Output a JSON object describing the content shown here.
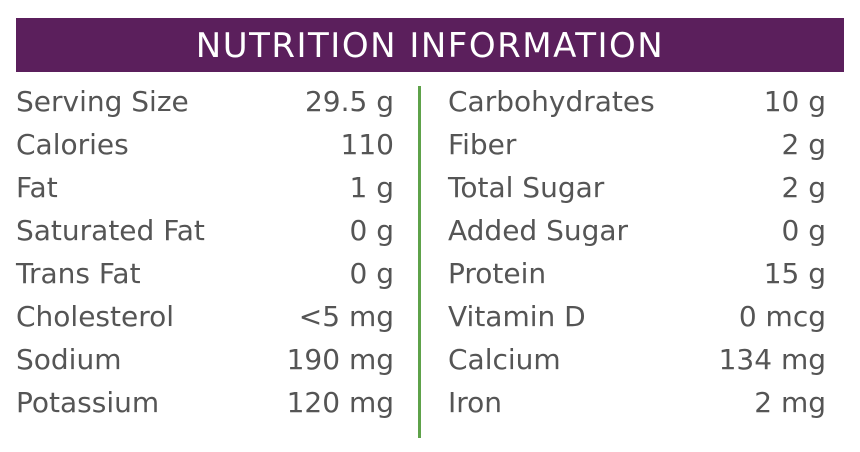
{
  "header": {
    "title": "NUTRITION INFORMATION"
  },
  "table": {
    "left": [
      [
        "Serving Size",
        "29.5 g"
      ],
      [
        "Calories",
        "110"
      ],
      [
        "Fat",
        "1 g"
      ],
      [
        "Saturated Fat",
        "0 g"
      ],
      [
        "Trans Fat",
        "0 g"
      ],
      [
        "Cholesterol",
        "<5 mg"
      ],
      [
        "Sodium",
        "190 mg"
      ],
      [
        "Potassium",
        "120 mg"
      ]
    ],
    "right": [
      [
        "Carbohydrates",
        "10 g"
      ],
      [
        "Fiber",
        "2 g"
      ],
      [
        "Total Sugar",
        "2 g"
      ],
      [
        "Added Sugar",
        "0 g"
      ],
      [
        "Protein",
        "15 g"
      ],
      [
        "Vitamin D",
        "0 mcg"
      ],
      [
        "Calcium",
        "134 mg"
      ],
      [
        "Iron",
        "2 mg"
      ]
    ]
  }
}
